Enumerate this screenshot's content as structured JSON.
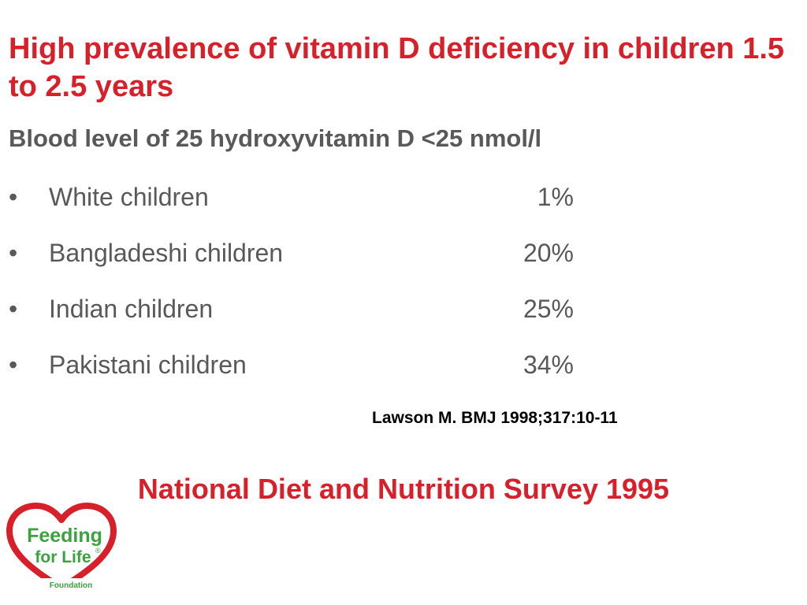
{
  "slide": {
    "title": "High prevalence of vitamin D deficiency in children 1.5 to 2.5 years",
    "subtitle": "Blood level of 25 hydroxyvitamin D <25 nmol/l",
    "bullet_glyph": "•",
    "items": [
      {
        "label": "White children",
        "value": "1%"
      },
      {
        "label": "Bangladeshi children",
        "value": "20%"
      },
      {
        "label": "Indian children",
        "value": "25%"
      },
      {
        "label": "Pakistani children",
        "value": "34%"
      }
    ],
    "citation": "Lawson M. BMJ 1998;317:10-11",
    "survey_heading": "National Diet and Nutrition Survey 1995"
  },
  "logo": {
    "line1": "Feeding",
    "line2": "for Life",
    "registered": "®",
    "line3": "Foundation",
    "heart_color": "#d8202a",
    "text_color": "#3aa23e"
  }
}
